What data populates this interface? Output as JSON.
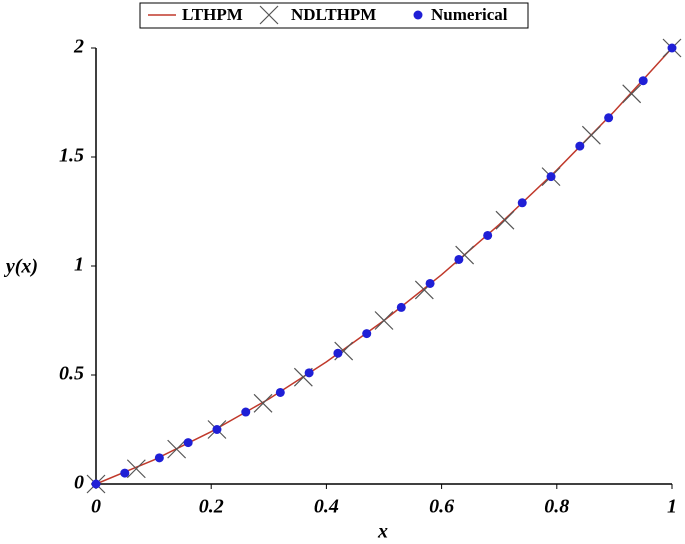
{
  "chart_data": {
    "type": "line",
    "x_label": "x",
    "y_label": "y(x)",
    "xlim": [
      0,
      1
    ],
    "ylim": [
      0,
      2
    ],
    "xticks": [
      0,
      0.2,
      0.4,
      0.6,
      0.8,
      1
    ],
    "yticks": [
      0,
      0.5,
      1,
      1.5,
      2
    ],
    "series": [
      {
        "name": "LTHPM",
        "color": "#c0392b",
        "marker": "line",
        "x": [
          0,
          0.1,
          0.2,
          0.3,
          0.4,
          0.5,
          0.6,
          0.7,
          0.8,
          0.9,
          1
        ],
        "values": [
          0,
          0.11,
          0.24,
          0.39,
          0.56,
          0.75,
          0.96,
          1.19,
          1.44,
          1.71,
          2
        ]
      },
      {
        "name": "NDLTHPM",
        "color": "#555555",
        "marker": "cross",
        "x": [
          0,
          0.07,
          0.14,
          0.21,
          0.29,
          0.36,
          0.43,
          0.5,
          0.57,
          0.64,
          0.71,
          0.79,
          0.86,
          0.93,
          1
        ],
        "values": [
          0,
          0.07,
          0.16,
          0.25,
          0.37,
          0.49,
          0.61,
          0.75,
          0.89,
          1.05,
          1.21,
          1.41,
          1.6,
          1.79,
          2
        ]
      },
      {
        "name": "Numerical",
        "color": "#1f1fd6",
        "marker": "dot",
        "x": [
          0,
          0.05,
          0.11,
          0.16,
          0.21,
          0.26,
          0.32,
          0.37,
          0.42,
          0.47,
          0.53,
          0.58,
          0.63,
          0.68,
          0.74,
          0.79,
          0.84,
          0.89,
          0.95,
          1
        ],
        "values": [
          0,
          0.05,
          0.12,
          0.19,
          0.25,
          0.33,
          0.42,
          0.51,
          0.6,
          0.69,
          0.81,
          0.92,
          1.03,
          1.14,
          1.29,
          1.41,
          1.55,
          1.68,
          1.85,
          2
        ]
      }
    ]
  }
}
